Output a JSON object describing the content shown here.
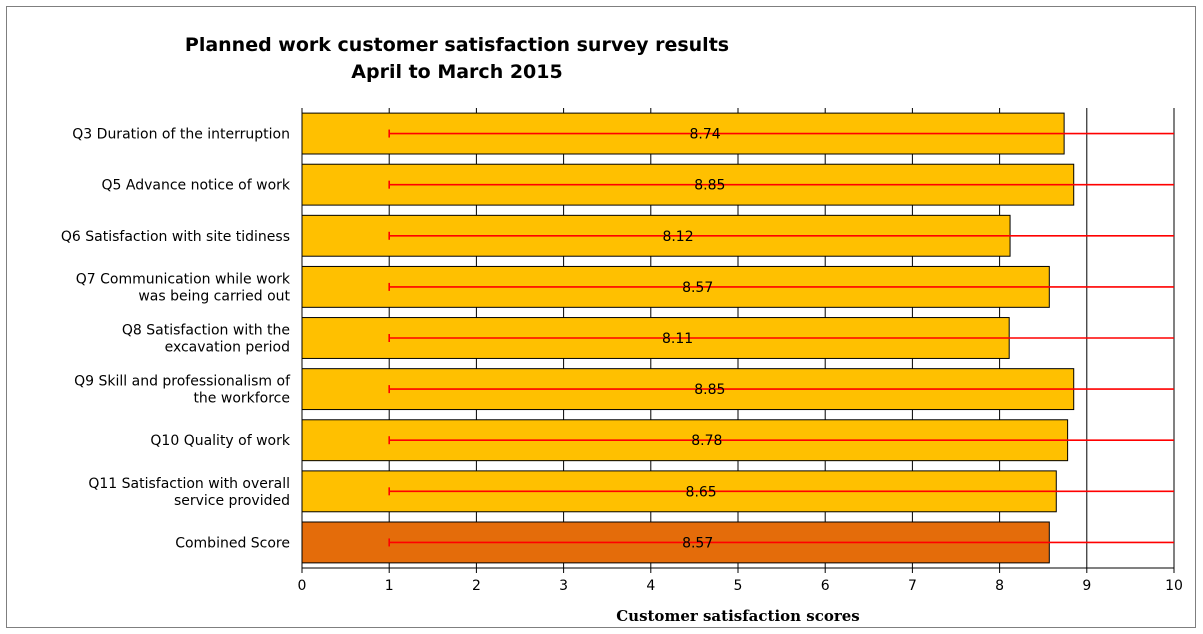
{
  "chart_data": {
    "type": "bar",
    "orientation": "horizontal",
    "title": "Planned work customer satisfaction survey results",
    "subtitle": "April to March 2015",
    "xlabel": "Customer satisfaction scores",
    "ylabel": "",
    "xlim": [
      0,
      10
    ],
    "x_ticks": [
      "0",
      "1",
      "2",
      "3",
      "4",
      "5",
      "6",
      "7",
      "8",
      "9",
      "10"
    ],
    "grid": "vertical",
    "categories": [
      "Q3 Duration of the interruption",
      "Q5 Advance notice of work",
      "Q6 Satisfaction with site tidiness",
      "Q7 Communication while work was being carried out",
      "Q8 Satisfaction with the excavation period",
      "Q9 Skill and professionalism of the workforce",
      "Q10 Quality of work",
      "Q11 Satisfaction with overall service provided",
      "Combined Score"
    ],
    "category_lines": [
      [
        "Q3 Duration of the interruption"
      ],
      [
        "Q5 Advance notice of work"
      ],
      [
        "Q6 Satisfaction with site tidiness"
      ],
      [
        "Q7 Communication while work",
        "was being carried out"
      ],
      [
        "Q8 Satisfaction with the",
        "excavation period"
      ],
      [
        "Q9 Skill and professionalism of",
        "the workforce"
      ],
      [
        "Q10 Quality of work"
      ],
      [
        "Q11 Satisfaction with overall",
        "service provided"
      ],
      [
        "Combined Score"
      ]
    ],
    "values": [
      8.74,
      8.85,
      8.12,
      8.57,
      8.11,
      8.85,
      8.78,
      8.65,
      8.57
    ],
    "data_labels": [
      "8.74",
      "8.85",
      "8.12",
      "8.57",
      "8.11",
      "8.85",
      "8.78",
      "8.65",
      "8.57"
    ],
    "error_bars": {
      "low": 1,
      "high": 10,
      "color": "#ff0000"
    },
    "colors": {
      "bar": "#ffc000",
      "combined_bar": "#e46c0a",
      "bar_outline": "#000000",
      "grid": "#000000",
      "error": "#ff0000"
    }
  }
}
